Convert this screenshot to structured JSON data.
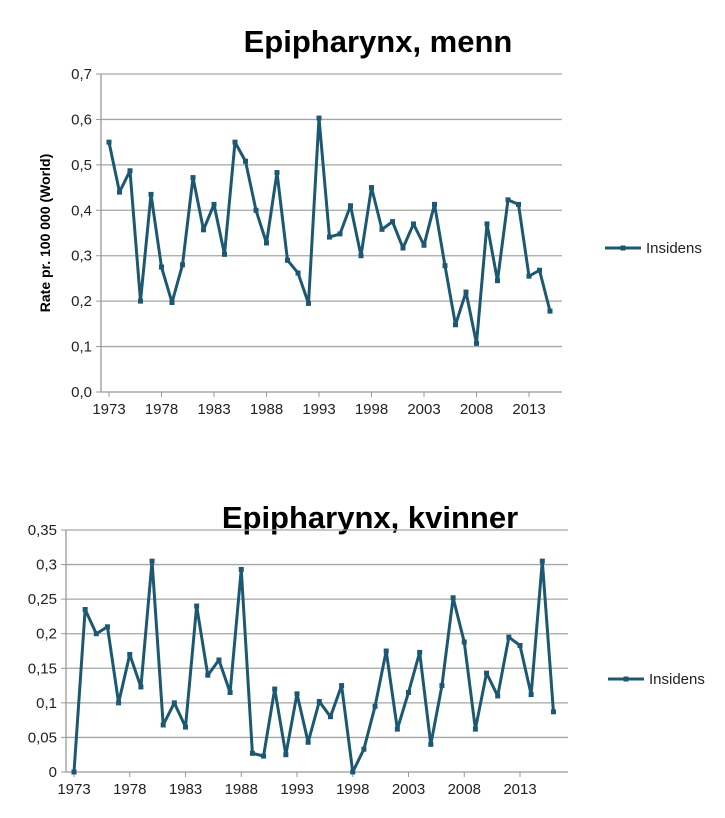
{
  "chart_data": [
    {
      "type": "line",
      "title": "Epipharynx, menn",
      "ylabel": "Rate pr. 100 000 (World)",
      "xlabel": "",
      "ylim": [
        0,
        0.7
      ],
      "ytick_labels": [
        "0,0",
        "0,1",
        "0,2",
        "0,3",
        "0,4",
        "0,5",
        "0,6",
        "0,7"
      ],
      "xtick_labels": [
        "1973",
        "1978",
        "1983",
        "1988",
        "1993",
        "1998",
        "2003",
        "2008",
        "2013"
      ],
      "grid": true,
      "legend_position": "right",
      "line_color": "#1d5872",
      "x": [
        1973,
        1974,
        1975,
        1976,
        1977,
        1978,
        1979,
        1980,
        1981,
        1982,
        1983,
        1984,
        1985,
        1986,
        1987,
        1988,
        1989,
        1990,
        1991,
        1992,
        1993,
        1994,
        1995,
        1996,
        1997,
        1998,
        1999,
        2000,
        2001,
        2002,
        2003,
        2004,
        2005,
        2006,
        2007,
        2008,
        2009,
        2010,
        2011,
        2012,
        2013,
        2014,
        2015
      ],
      "series": [
        {
          "name": "Insidens",
          "values": [
            0.55,
            0.44,
            0.487,
            0.2,
            0.435,
            0.275,
            0.197,
            0.28,
            0.472,
            0.357,
            0.413,
            0.303,
            0.55,
            0.508,
            0.4,
            0.328,
            0.483,
            0.29,
            0.262,
            0.195,
            0.603,
            0.341,
            0.348,
            0.41,
            0.3,
            0.45,
            0.358,
            0.375,
            0.317,
            0.37,
            0.323,
            0.413,
            0.278,
            0.148,
            0.22,
            0.107,
            0.37,
            0.245,
            0.423,
            0.413,
            0.255,
            0.268,
            0.178
          ]
        }
      ]
    },
    {
      "type": "line",
      "title": "Epipharynx, kvinner",
      "ylabel": "",
      "xlabel": "",
      "ylim": [
        0,
        0.35
      ],
      "ytick_labels": [
        "0",
        "0,05",
        "0,1",
        "0,15",
        "0,2",
        "0,25",
        "0,3",
        "0,35"
      ],
      "xtick_labels": [
        "1973",
        "1978",
        "1983",
        "1988",
        "1993",
        "1998",
        "2003",
        "2008",
        "2013"
      ],
      "grid": true,
      "legend_position": "right",
      "line_color": "#1d5872",
      "x": [
        1973,
        1974,
        1975,
        1976,
        1977,
        1978,
        1979,
        1980,
        1981,
        1982,
        1983,
        1984,
        1985,
        1986,
        1987,
        1988,
        1989,
        1990,
        1991,
        1992,
        1993,
        1994,
        1995,
        1996,
        1997,
        1998,
        1999,
        2000,
        2001,
        2002,
        2003,
        2004,
        2005,
        2006,
        2007,
        2008,
        2009,
        2010,
        2011,
        2012,
        2013,
        2014,
        2015,
        2016
      ],
      "series": [
        {
          "name": "Insidens",
          "values": [
            0,
            0.235,
            0.2,
            0.21,
            0.1,
            0.17,
            0.123,
            0.305,
            0.068,
            0.1,
            0.065,
            0.24,
            0.14,
            0.162,
            0.115,
            0.293,
            0.027,
            0.023,
            0.12,
            0.025,
            0.113,
            0.043,
            0.102,
            0.08,
            0.125,
            0,
            0.033,
            0.095,
            0.175,
            0.062,
            0.115,
            0.173,
            0.04,
            0.125,
            0.252,
            0.188,
            0.062,
            0.143,
            0.11,
            0.195,
            0.183,
            0.112,
            0.305,
            0.087
          ]
        }
      ]
    }
  ]
}
